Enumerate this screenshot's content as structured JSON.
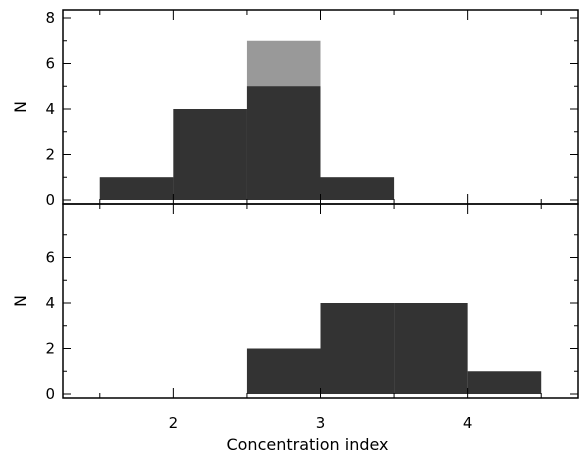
{
  "chart_data": [
    {
      "type": "bar",
      "panel": "top",
      "xlabel": "",
      "ylabel": "N",
      "xlim": [
        1.25,
        4.75
      ],
      "ylim": [
        0,
        8
      ],
      "y_ticks": [
        0,
        2,
        4,
        6,
        8
      ],
      "y_tick_labels": [
        "0",
        "2",
        "4",
        "6",
        "8"
      ],
      "x_ticks": [
        2,
        3,
        4
      ],
      "x_tick_labels": [
        "",
        "",
        ""
      ],
      "bin_edges": [
        1.5,
        2.0,
        2.5,
        3.0,
        3.5
      ],
      "series": [
        {
          "values": [
            1,
            4,
            5,
            1
          ],
          "color": "#333333"
        },
        {
          "values": [
            1,
            4,
            7,
            1
          ],
          "color": "#999999",
          "stacked_behind": true
        }
      ],
      "grid": false
    },
    {
      "type": "bar",
      "panel": "bottom",
      "xlabel": "Concentration index",
      "ylabel": "N",
      "xlim": [
        1.25,
        4.75
      ],
      "ylim": [
        0,
        8
      ],
      "y_ticks": [
        0,
        2,
        4,
        6
      ],
      "y_tick_labels": [
        "0",
        "2",
        "4",
        "6"
      ],
      "x_ticks": [
        2,
        3,
        4
      ],
      "x_tick_labels": [
        "2",
        "3",
        "4"
      ],
      "bin_edges": [
        2.5,
        3.0,
        3.5,
        4.0,
        4.5
      ],
      "series": [
        {
          "values": [
            2,
            4,
            4,
            1
          ],
          "color": "#333333"
        }
      ],
      "grid": false
    }
  ]
}
